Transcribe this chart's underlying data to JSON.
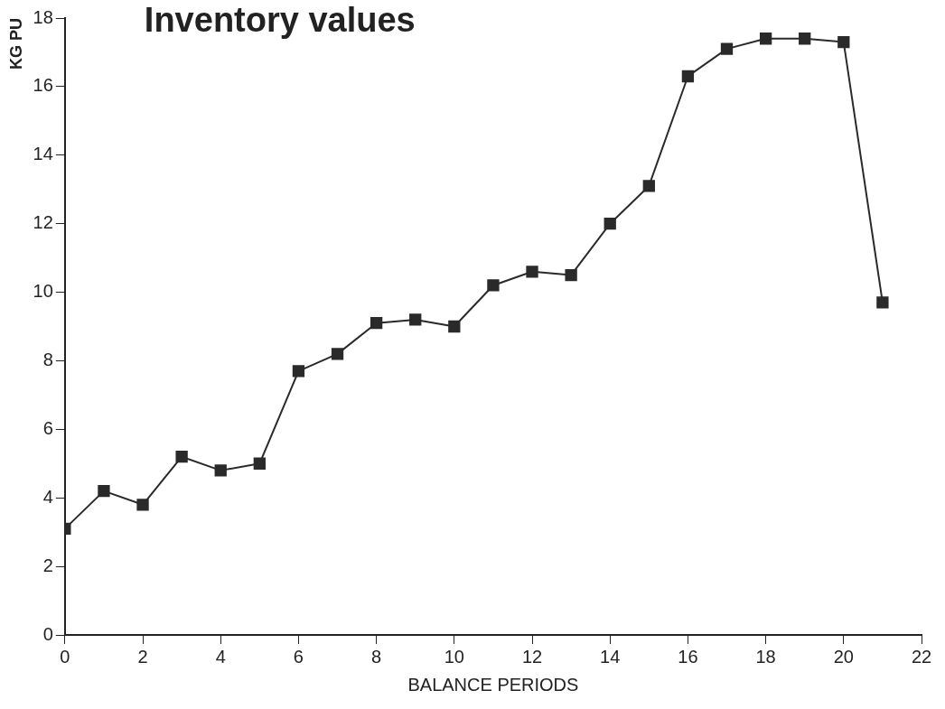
{
  "chart_data": {
    "type": "line",
    "title": "Inventory values",
    "xlabel": "BALANCE PERIODS",
    "ylabel": "KG PU",
    "x": [
      0,
      1,
      2,
      3,
      4,
      5,
      6,
      7,
      8,
      9,
      10,
      11,
      12,
      13,
      14,
      15,
      16,
      17,
      18,
      19,
      20,
      21
    ],
    "series": [
      {
        "color": "#2a2a2a",
        "values": [
          3.1,
          4.2,
          3.8,
          5.2,
          4.8,
          5.0,
          7.7,
          8.2,
          9.1,
          9.2,
          9.0,
          10.2,
          10.6,
          10.5,
          12.0,
          13.1,
          16.3,
          17.1,
          17.4,
          17.4,
          17.3,
          9.7
        ]
      }
    ],
    "xlim": [
      0,
      22
    ],
    "xticks": [
      0,
      2,
      4,
      6,
      8,
      10,
      12,
      14,
      16,
      18,
      20,
      22
    ],
    "ylim": [
      0,
      18
    ],
    "yticks": [
      0,
      2,
      4,
      6,
      8,
      10,
      12,
      14,
      16,
      18
    ],
    "grid": false,
    "legend": false,
    "marker": "square",
    "line_style": "solid"
  }
}
